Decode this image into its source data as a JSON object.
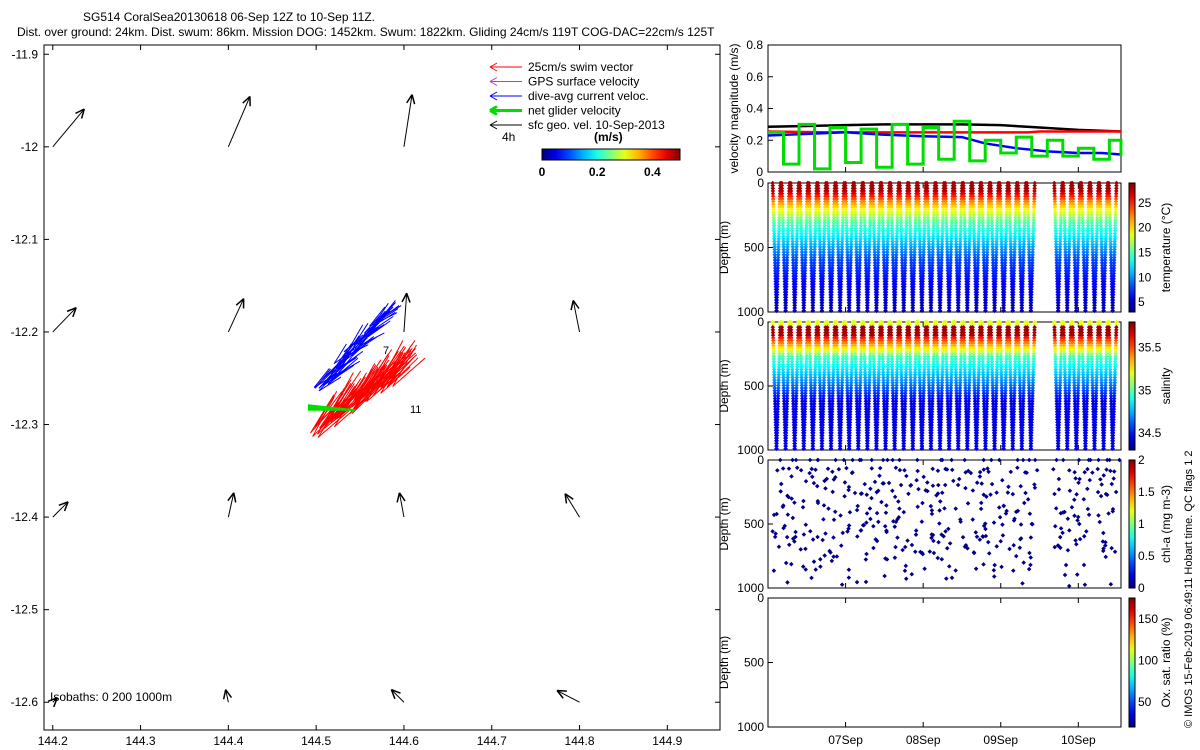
{
  "header": {
    "title": "SG514 CoralSea20130618 06-Sep 12Z to 10-Sep 11Z.",
    "subtitle": "Dist. over ground: 24km. Dist. swum: 86km. Mission DOG: 1452km. Swum: 1822km. Gliding 24cm/s 119T COG-DAC=22cm/s 125T"
  },
  "side_note": "© IMOS 15-Feb-2019 06:49:11 Hobart time. QC flags 1  2",
  "chart_data": [
    {
      "id": "map",
      "type": "scatter",
      "xlim": [
        144.19,
        144.96
      ],
      "ylim": [
        -12.63,
        -11.89
      ],
      "xticks": [
        "144.2",
        "144.3",
        "144.4",
        "144.5",
        "144.6",
        "144.7",
        "144.8",
        "144.9"
      ],
      "yticks": [
        "-11.9",
        "-12",
        "-12.1",
        "-12.2",
        "-12.3",
        "-12.4",
        "-12.5",
        "-12.6"
      ],
      "legend": [
        "25cm/s swim vector",
        "GPS surface velocity",
        "dive-avg current veloc.",
        "net glider velocity",
        "sfc geo. vel. 10-Sep-2013"
      ],
      "legend_colors": [
        "#ff0000",
        "#cc33cc",
        "#0000ff",
        "#00dd00",
        "#000000"
      ],
      "legend_extra": "4h",
      "colorbar_label": "(m/s)",
      "colorbar_ticks": [
        "0",
        "0.2",
        "0.4"
      ],
      "isobaths_label": "Isobaths: 0   200  1000m",
      "annotations": [
        "7",
        "11"
      ],
      "geo_vectors": [
        {
          "lon": 144.2,
          "lat": -12.0,
          "u": 0.035,
          "v": 0.042
        },
        {
          "lon": 144.4,
          "lat": -12.0,
          "u": 0.024,
          "v": 0.056
        },
        {
          "lon": 144.6,
          "lat": -12.0,
          "u": 0.009,
          "v": 0.058
        },
        {
          "lon": 144.2,
          "lat": -12.2,
          "u": 0.026,
          "v": 0.027
        },
        {
          "lon": 144.4,
          "lat": -12.2,
          "u": 0.017,
          "v": 0.037
        },
        {
          "lon": 144.6,
          "lat": -12.2,
          "u": 0.003,
          "v": 0.043
        },
        {
          "lon": 144.8,
          "lat": -12.2,
          "u": -0.007,
          "v": 0.035
        },
        {
          "lon": 144.2,
          "lat": -12.4,
          "u": 0.017,
          "v": 0.017
        },
        {
          "lon": 144.4,
          "lat": -12.4,
          "u": 0.006,
          "v": 0.027
        },
        {
          "lon": 144.6,
          "lat": -12.4,
          "u": -0.005,
          "v": 0.027
        },
        {
          "lon": 144.8,
          "lat": -12.4,
          "u": -0.016,
          "v": 0.026
        },
        {
          "lon": 144.2,
          "lat": -12.6,
          "u": 0.005,
          "v": 0.005
        },
        {
          "lon": 144.4,
          "lat": -12.6,
          "u": -0.003,
          "v": 0.014
        },
        {
          "lon": 144.6,
          "lat": -12.6,
          "u": -0.014,
          "v": 0.014
        },
        {
          "lon": 144.8,
          "lat": -12.6,
          "u": -0.025,
          "v": 0.013
        }
      ]
    },
    {
      "id": "velocity",
      "type": "line",
      "ylabel": "velocity magnitude (m/s)",
      "ylim": [
        0,
        0.8
      ],
      "yticks": [
        "0",
        "0.2",
        "0.4",
        "0.6",
        "0.8"
      ],
      "xlim": [
        0,
        4.55
      ],
      "series": [
        {
          "color": "#000000",
          "x": [
            0,
            0.5,
            1,
            1.5,
            2,
            2.5,
            3,
            3.5,
            4,
            4.55
          ],
          "y": [
            0.285,
            0.29,
            0.295,
            0.3,
            0.3,
            0.3,
            0.295,
            0.28,
            0.265,
            0.255
          ]
        },
        {
          "color": "#ff0000",
          "x": [
            0,
            0.8,
            1.6,
            2.4,
            3.0,
            3.35,
            3.5,
            3.9,
            4.55
          ],
          "y": [
            0.255,
            0.25,
            0.25,
            0.25,
            0.25,
            0.25,
            0.255,
            0.255,
            0.255
          ]
        },
        {
          "color": "#0000ff",
          "x": [
            0,
            0.5,
            1,
            1.5,
            2,
            2.5,
            2.8,
            3.2,
            3.6,
            4,
            4.3,
            4.55
          ],
          "y": [
            0.23,
            0.24,
            0.25,
            0.235,
            0.225,
            0.22,
            0.18,
            0.15,
            0.13,
            0.12,
            0.12,
            0.11
          ]
        },
        {
          "color": "#00dd00",
          "x": [
            0,
            0.2,
            0.4,
            0.6,
            0.8,
            1,
            1.2,
            1.4,
            1.6,
            1.8,
            2,
            2.2,
            2.4,
            2.6,
            2.8,
            3,
            3.2,
            3.4,
            3.6,
            3.8,
            4,
            4.2,
            4.4,
            4.55
          ],
          "y": [
            0.25,
            0.05,
            0.3,
            0.02,
            0.28,
            0.06,
            0.27,
            0.03,
            0.3,
            0.05,
            0.28,
            0.08,
            0.32,
            0.07,
            0.2,
            0.12,
            0.22,
            0.1,
            0.2,
            0.1,
            0.15,
            0.08,
            0.2,
            0.1
          ]
        }
      ]
    },
    {
      "id": "temperature",
      "type": "scatter",
      "ylabel": "Depth (m)",
      "ylim": [
        0,
        1000
      ],
      "yticks": [
        "0",
        "500",
        "1000"
      ],
      "colorbar_label": "temperature (°C)",
      "colorbar_ticks": [
        "5",
        "10",
        "15",
        "20",
        "25"
      ],
      "clim": [
        3,
        29
      ]
    },
    {
      "id": "salinity",
      "type": "scatter",
      "ylabel": "Depth (m)",
      "ylim": [
        0,
        1000
      ],
      "yticks": [
        "0",
        "500",
        "1000"
      ],
      "colorbar_label": "salinity",
      "colorbar_ticks": [
        "34.5",
        "35",
        "35.5"
      ],
      "clim": [
        34.3,
        35.8
      ]
    },
    {
      "id": "chla",
      "type": "scatter",
      "ylabel": "Depth (m)",
      "ylim": [
        0,
        1000
      ],
      "yticks": [
        "0",
        "500",
        "1000"
      ],
      "colorbar_label": "chl-a (mg m-3)",
      "colorbar_ticks": [
        "0",
        "0.5",
        "1",
        "1.5",
        "2"
      ],
      "clim": [
        0,
        2
      ]
    },
    {
      "id": "oxygen",
      "type": "scatter",
      "ylabel": "Depth (m)",
      "ylim": [
        0,
        1000
      ],
      "yticks": [
        "0",
        "500",
        "1000"
      ],
      "colorbar_label": "Ox. sat. ratio (%)",
      "colorbar_ticks": [
        "50",
        "100",
        "150"
      ],
      "clim": [
        20,
        175
      ],
      "xticks": [
        "07Sep",
        "08Sep",
        "09Sep",
        "10Sep"
      ]
    }
  ],
  "dives": {
    "count": 38,
    "gap_start": 3.4,
    "gap_end": 3.58,
    "day_start": 0,
    "day_end": 4.55
  }
}
